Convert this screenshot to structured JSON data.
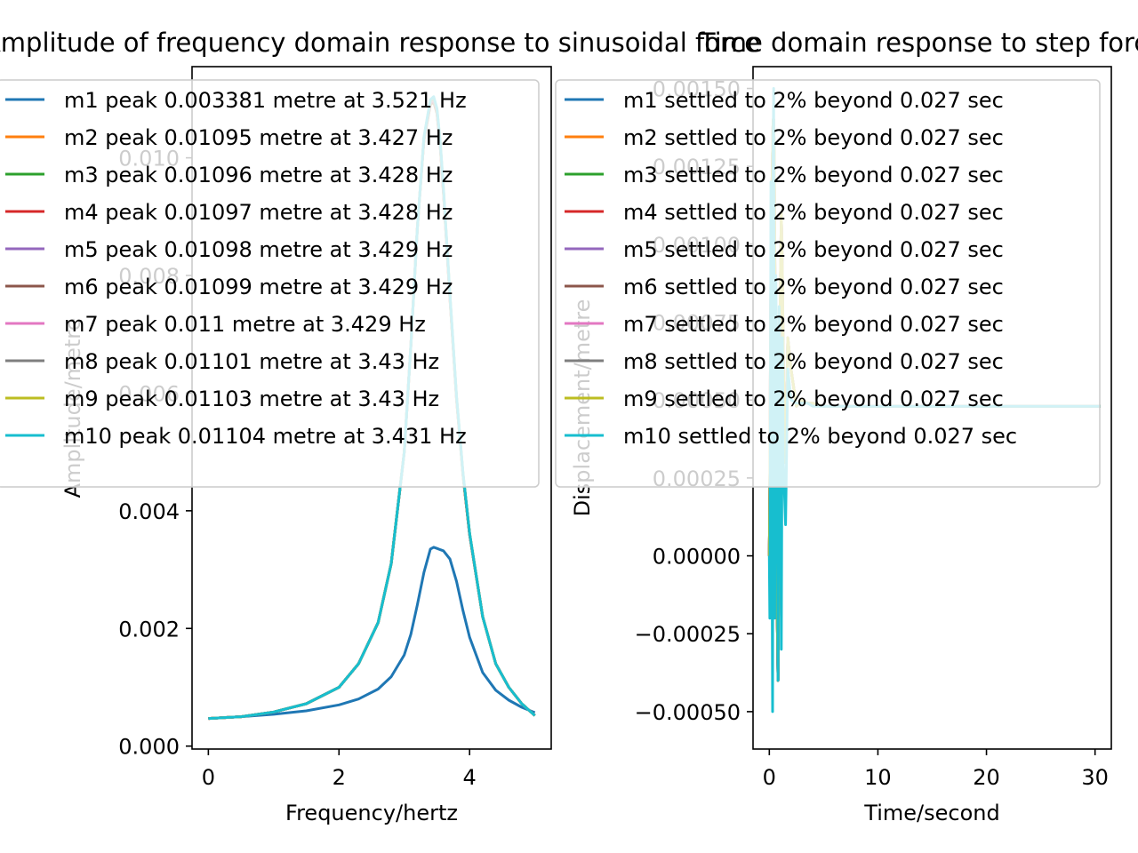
{
  "chart_data": [
    {
      "type": "line",
      "title": "Amplitude of frequency domain response to sinusoidal force",
      "xlabel": "Frequency/hertz",
      "ylabel": "Amplitude/metre",
      "xlim": [
        -0.25,
        5.25
      ],
      "ylim": [
        -5e-05,
        0.01155
      ],
      "xticks": [
        0,
        2,
        4
      ],
      "yticks": [
        0.0,
        0.002,
        0.004,
        0.006,
        0.008,
        0.01
      ],
      "ytick_labels": [
        "0.000",
        "0.002",
        "0.004",
        "0.006",
        "0.008",
        "0.010"
      ],
      "grid": false,
      "legend_position": "top-left",
      "x": [
        0,
        0.5,
        1.0,
        1.5,
        2.0,
        2.3,
        2.6,
        2.8,
        3.0,
        3.1,
        3.2,
        3.3,
        3.4,
        3.45,
        3.5,
        3.55,
        3.6,
        3.7,
        3.8,
        3.9,
        4.0,
        4.2,
        4.4,
        4.6,
        4.8,
        5.0
      ],
      "series": [
        {
          "name": "m1 peak 0.003381 metre at 3.521 Hz",
          "color": "#1f77b4",
          "values": [
            0.00047,
            0.0005,
            0.00054,
            0.0006,
            0.0007,
            0.0008,
            0.00097,
            0.00118,
            0.00155,
            0.0019,
            0.0024,
            0.00295,
            0.00335,
            0.00338,
            0.00336,
            0.00334,
            0.00332,
            0.00318,
            0.0028,
            0.0023,
            0.00185,
            0.00125,
            0.00095,
            0.00078,
            0.00066,
            0.00057
          ]
        },
        {
          "name": "m2 peak 0.01095 metre at 3.427 Hz",
          "color": "#ff7f0e",
          "values": [
            0.00047,
            0.0005,
            0.00058,
            0.00072,
            0.001,
            0.0014,
            0.0021,
            0.0031,
            0.005,
            0.0068,
            0.0088,
            0.0103,
            0.0109,
            0.01095,
            0.01075,
            0.0102,
            0.0094,
            0.0076,
            0.0059,
            0.0046,
            0.0036,
            0.0022,
            0.0014,
            0.001,
            0.00072,
            0.00052
          ]
        },
        {
          "name": "m3 peak 0.01096 metre at 3.428 Hz",
          "color": "#2ca02c",
          "values": [
            0.00047,
            0.0005,
            0.00058,
            0.00072,
            0.001,
            0.0014,
            0.0021,
            0.0031,
            0.005,
            0.0068,
            0.0088,
            0.0103,
            0.01091,
            0.01096,
            0.01076,
            0.01021,
            0.00941,
            0.00761,
            0.0059,
            0.0046,
            0.0036,
            0.0022,
            0.0014,
            0.001,
            0.00072,
            0.00052
          ]
        },
        {
          "name": "m4 peak 0.01097 metre at 3.428 Hz",
          "color": "#d62728",
          "values": [
            0.00047,
            0.0005,
            0.00058,
            0.00072,
            0.001,
            0.0014,
            0.0021,
            0.0031,
            0.005,
            0.0068,
            0.0088,
            0.01031,
            0.01092,
            0.01097,
            0.01077,
            0.01022,
            0.00942,
            0.00762,
            0.00591,
            0.00461,
            0.0036,
            0.0022,
            0.0014,
            0.001,
            0.00072,
            0.00052
          ]
        },
        {
          "name": "m5 peak 0.01098 metre at 3.429 Hz",
          "color": "#9467bd",
          "values": [
            0.00047,
            0.0005,
            0.00058,
            0.00072,
            0.001,
            0.0014,
            0.0021,
            0.0031,
            0.005,
            0.0068,
            0.0088,
            0.01031,
            0.01093,
            0.01098,
            0.01078,
            0.01023,
            0.00943,
            0.00763,
            0.00591,
            0.00461,
            0.0036,
            0.0022,
            0.0014,
            0.001,
            0.00072,
            0.00052
          ]
        },
        {
          "name": "m6 peak 0.01099 metre at 3.429 Hz",
          "color": "#8c564b",
          "values": [
            0.00047,
            0.0005,
            0.00058,
            0.00072,
            0.001,
            0.0014,
            0.0021,
            0.0031,
            0.005,
            0.0068,
            0.0088,
            0.01032,
            0.01094,
            0.01099,
            0.01079,
            0.01024,
            0.00944,
            0.00764,
            0.00592,
            0.00462,
            0.00361,
            0.0022,
            0.0014,
            0.001,
            0.00072,
            0.00052
          ]
        },
        {
          "name": "m7 peak 0.011 metre at 3.429 Hz",
          "color": "#e377c2",
          "values": [
            0.00047,
            0.0005,
            0.00058,
            0.00072,
            0.001,
            0.0014,
            0.0021,
            0.0031,
            0.005,
            0.0068,
            0.0088,
            0.01032,
            0.01095,
            0.011,
            0.0108,
            0.01025,
            0.00945,
            0.00765,
            0.00592,
            0.00462,
            0.00361,
            0.0022,
            0.0014,
            0.001,
            0.00072,
            0.00052
          ]
        },
        {
          "name": "m8 peak 0.01101 metre at 3.43 Hz",
          "color": "#7f7f7f",
          "values": [
            0.00047,
            0.0005,
            0.00058,
            0.00072,
            0.001,
            0.0014,
            0.0021,
            0.0031,
            0.005,
            0.0068,
            0.0088,
            0.01033,
            0.01096,
            0.01101,
            0.01081,
            0.01026,
            0.00946,
            0.00766,
            0.00593,
            0.00463,
            0.00361,
            0.0022,
            0.0014,
            0.001,
            0.00072,
            0.00052
          ]
        },
        {
          "name": "m9 peak 0.01103 metre at 3.43 Hz",
          "color": "#bcbd22",
          "values": [
            0.00047,
            0.0005,
            0.00058,
            0.00072,
            0.001,
            0.0014,
            0.0021,
            0.0031,
            0.005,
            0.0068,
            0.0088,
            0.01034,
            0.01098,
            0.01103,
            0.01083,
            0.01028,
            0.00948,
            0.00767,
            0.00594,
            0.00463,
            0.00362,
            0.0022,
            0.0014,
            0.001,
            0.00072,
            0.00052
          ]
        },
        {
          "name": "m10 peak 0.01104 metre at 3.431 Hz",
          "color": "#17becf",
          "values": [
            0.00047,
            0.0005,
            0.00058,
            0.00072,
            0.001,
            0.0014,
            0.0021,
            0.0031,
            0.005,
            0.0068,
            0.0088,
            0.01035,
            0.01099,
            0.01104,
            0.01084,
            0.01029,
            0.00949,
            0.00768,
            0.00595,
            0.00464,
            0.00362,
            0.0022,
            0.0014,
            0.001,
            0.00072,
            0.00052
          ]
        }
      ]
    },
    {
      "type": "line",
      "title": "Time domain response to step force",
      "xlabel": "Time/second",
      "ylabel": "Displacement/metre",
      "xlim": [
        -1.5,
        31.5
      ],
      "ylim": [
        -0.00062,
        0.00157
      ],
      "xticks": [
        0,
        10,
        20,
        30
      ],
      "yticks": [
        -0.0005,
        -0.00025,
        0.0,
        0.00025,
        0.0005,
        0.00075,
        0.001,
        0.00125,
        0.0015
      ],
      "ytick_labels": [
        "−0.00050",
        "−0.00025",
        "0.00000",
        "0.00025",
        "0.00050",
        "0.00075",
        "0.00100",
        "0.00125",
        "0.00150"
      ],
      "grid": false,
      "legend_position": "top-right",
      "x": [
        0,
        0.05,
        0.1,
        0.15,
        0.2,
        0.3,
        0.35,
        0.4,
        0.45,
        0.5,
        0.6,
        0.7,
        0.8,
        0.9,
        1.0,
        1.1,
        1.2,
        1.3,
        1.5,
        1.7,
        2.0,
        2.5,
        3.0,
        3.5,
        4.0,
        5.0,
        10.0,
        15.0,
        20.0,
        25.0,
        30.5
      ],
      "series": [
        {
          "name": "m1 settled to 2% beyond 0.027 sec",
          "color": "#1f77b4",
          "values": [
            0.0,
            0.0002,
            0.0006,
            0.0009,
            0.0011,
            0.0013,
            0.0014,
            0.0014,
            0.0013,
            0.001,
            0.0005,
            -0.0001,
            -0.0004,
            0.0002,
            0.0008,
            0.0011,
            0.0009,
            0.0006,
            0.0003,
            0.0007,
            0.0006,
            0.00048,
            0.0005,
            0.00049,
            0.00049,
            0.00048,
            0.00048,
            0.00048,
            0.00048,
            0.00048,
            0.00048
          ]
        },
        {
          "name": "m2 settled to 2% beyond 0.027 sec",
          "color": "#ff7f0e",
          "values": [
            0.0,
            0.0002,
            0.0006,
            0.0009,
            0.0011,
            0.0013,
            0.0014,
            0.0014,
            0.0013,
            0.001,
            0.0005,
            -0.0001,
            -0.0004,
            0.0002,
            0.0008,
            0.0011,
            0.0009,
            0.0006,
            0.0003,
            0.0007,
            0.0006,
            0.00048,
            0.0005,
            0.00049,
            0.00049,
            0.00048,
            0.00048,
            0.00048,
            0.00048,
            0.00048,
            0.00048
          ]
        },
        {
          "name": "m3 settled to 2% beyond 0.027 sec",
          "color": "#2ca02c",
          "values": [
            0.0,
            0.0002,
            0.0006,
            0.0009,
            0.0011,
            0.0013,
            0.0014,
            0.0014,
            0.0013,
            0.001,
            0.0005,
            -0.0001,
            -0.0004,
            0.0002,
            0.0008,
            0.0011,
            0.0009,
            0.0006,
            0.0003,
            0.0007,
            0.0006,
            0.00048,
            0.0005,
            0.00049,
            0.00049,
            0.00048,
            0.00048,
            0.00048,
            0.00048,
            0.00048,
            0.00048
          ]
        },
        {
          "name": "m4 settled to 2% beyond 0.027 sec",
          "color": "#d62728",
          "values": [
            0.0,
            0.0002,
            0.0006,
            0.0009,
            0.0011,
            0.0013,
            0.0014,
            0.0014,
            0.0013,
            0.001,
            0.0005,
            -0.0001,
            -0.0004,
            0.0002,
            0.0008,
            0.0011,
            0.0009,
            0.0006,
            0.0003,
            0.0007,
            0.0006,
            0.00048,
            0.0005,
            0.00049,
            0.00049,
            0.00048,
            0.00048,
            0.00048,
            0.00048,
            0.00048,
            0.00048
          ]
        },
        {
          "name": "m5 settled to 2% beyond 0.027 sec",
          "color": "#9467bd",
          "values": [
            0.0,
            0.0002,
            0.0006,
            0.0009,
            0.0011,
            0.0013,
            0.0014,
            0.0014,
            0.0013,
            0.001,
            0.0005,
            -0.0001,
            -0.0004,
            0.0002,
            0.0008,
            0.0011,
            0.0009,
            0.0006,
            0.0003,
            0.0007,
            0.0006,
            0.00048,
            0.0005,
            0.00049,
            0.00049,
            0.00048,
            0.00048,
            0.00048,
            0.00048,
            0.00048,
            0.00048
          ]
        },
        {
          "name": "m6 settled to 2% beyond 0.027 sec",
          "color": "#8c564b",
          "values": [
            0.0,
            0.0002,
            0.0006,
            0.0009,
            0.0011,
            0.0013,
            0.0014,
            0.0014,
            0.0013,
            0.001,
            0.0005,
            -0.0001,
            -0.0004,
            0.0002,
            0.0008,
            0.0011,
            0.0009,
            0.0006,
            0.0003,
            0.0007,
            0.0006,
            0.00048,
            0.0005,
            0.00049,
            0.00049,
            0.00048,
            0.00048,
            0.00048,
            0.00048,
            0.00048,
            0.00048
          ]
        },
        {
          "name": "m7 settled to 2% beyond 0.027 sec",
          "color": "#e377c2",
          "values": [
            0.0,
            0.0002,
            0.0006,
            0.0009,
            0.0011,
            0.0013,
            0.0014,
            0.0014,
            0.0013,
            0.001,
            0.0005,
            -0.0001,
            -0.0004,
            0.0002,
            0.0008,
            0.0011,
            0.0009,
            0.0006,
            0.0003,
            0.0007,
            0.0006,
            0.00048,
            0.0005,
            0.00049,
            0.00049,
            0.00048,
            0.00048,
            0.00048,
            0.00048,
            0.00048,
            0.00048
          ]
        },
        {
          "name": "m8 settled to 2% beyond 0.027 sec",
          "color": "#7f7f7f",
          "values": [
            0.0,
            0.0002,
            0.0006,
            0.0009,
            0.0011,
            0.0013,
            0.0014,
            0.0014,
            0.0013,
            0.001,
            0.0005,
            -0.0001,
            -0.0004,
            0.0002,
            0.0008,
            0.0011,
            0.0009,
            0.0006,
            0.0003,
            0.0007,
            0.0006,
            0.00048,
            0.0005,
            0.00049,
            0.00049,
            0.00048,
            0.00048,
            0.00048,
            0.00048,
            0.00048,
            0.00048
          ]
        },
        {
          "name": "m9 settled to 2% beyond 0.027 sec",
          "color": "#bcbd22",
          "values": [
            0.0,
            0.0002,
            0.0006,
            0.0009,
            0.0011,
            0.0013,
            0.0014,
            0.0014,
            0.0013,
            0.001,
            0.0005,
            -0.0001,
            -0.0004,
            0.0002,
            0.0008,
            0.0011,
            0.0009,
            0.0006,
            0.0003,
            0.0007,
            0.0006,
            0.00048,
            0.0005,
            0.00049,
            0.00049,
            0.00048,
            0.00048,
            0.00048,
            0.00048,
            0.00048,
            0.00048
          ]
        },
        {
          "name": "m10 settled to 2% beyond 0.027 sec",
          "color": "#17becf",
          "values": [
            0.0,
            -0.0002,
            0.0004,
            0.0012,
            0.0005,
            -0.0005,
            0.0013,
            0.0015,
            0.0003,
            -0.0002,
            0.0009,
            0.0005,
            -0.0004,
            0.0008,
            0.0006,
            -0.0003,
            0.0007,
            0.0003,
            0.0001,
            0.0006,
            0.0005,
            0.00049,
            0.00049,
            0.00049,
            0.00048,
            0.00048,
            0.00048,
            0.00048,
            0.00048,
            0.00048,
            0.00048
          ]
        }
      ]
    }
  ]
}
